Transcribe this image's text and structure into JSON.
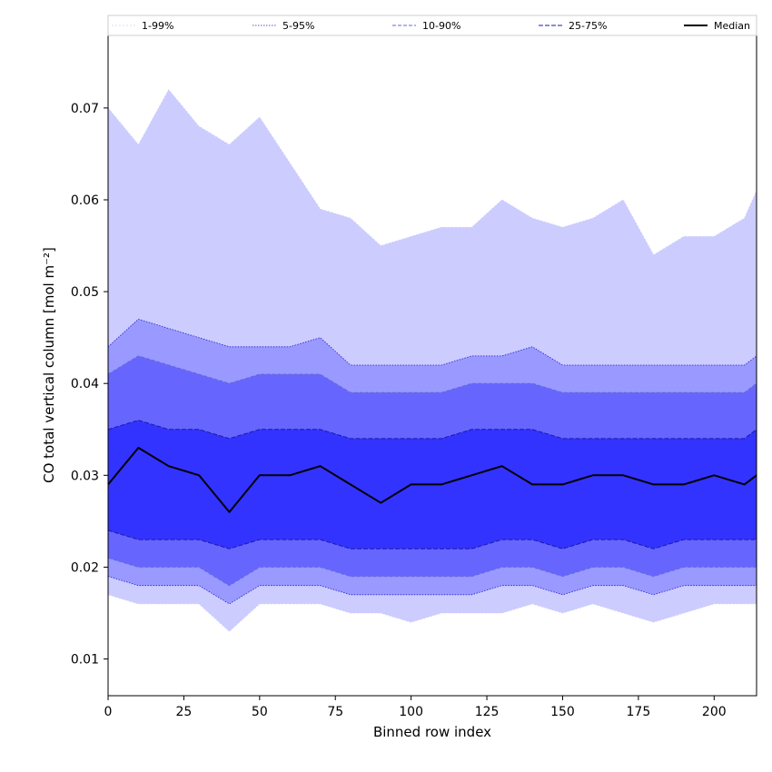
{
  "chart_data": {
    "type": "area",
    "xlabel": "Binned row index",
    "ylabel": "CO total vertical column [mol m⁻²]",
    "xlim": [
      0,
      214
    ],
    "ylim": [
      0.006,
      0.078
    ],
    "xticks": [
      0,
      25,
      50,
      75,
      100,
      125,
      150,
      175,
      200
    ],
    "yticks": [
      0.01,
      0.02,
      0.03,
      0.04,
      0.05,
      0.06,
      0.07
    ],
    "legend_position": "top",
    "legend": [
      "1-99%",
      "5-95%",
      "10-90%",
      "25-75%",
      "Median"
    ],
    "x": [
      0,
      10,
      20,
      30,
      40,
      50,
      60,
      70,
      80,
      90,
      100,
      110,
      120,
      130,
      140,
      150,
      160,
      170,
      180,
      190,
      200,
      210,
      214
    ],
    "bands": [
      {
        "name": "1-99%",
        "fill": "#ccccff",
        "upper": [
          0.07,
          0.066,
          0.072,
          0.068,
          0.066,
          0.069,
          0.064,
          0.059,
          0.058,
          0.055,
          0.056,
          0.057,
          0.057,
          0.06,
          0.058,
          0.057,
          0.058,
          0.06,
          0.054,
          0.056,
          0.056,
          0.058,
          0.061
        ],
        "lower": [
          0.017,
          0.016,
          0.016,
          0.016,
          0.013,
          0.016,
          0.016,
          0.016,
          0.015,
          0.015,
          0.014,
          0.015,
          0.015,
          0.015,
          0.016,
          0.015,
          0.016,
          0.015,
          0.014,
          0.015,
          0.016,
          0.016,
          0.016
        ]
      },
      {
        "name": "5-95%",
        "fill": "#9999ff",
        "upper": [
          0.044,
          0.047,
          0.046,
          0.045,
          0.044,
          0.044,
          0.044,
          0.045,
          0.042,
          0.042,
          0.042,
          0.042,
          0.043,
          0.043,
          0.044,
          0.042,
          0.042,
          0.042,
          0.042,
          0.042,
          0.042,
          0.042,
          0.043
        ],
        "lower": [
          0.019,
          0.018,
          0.018,
          0.018,
          0.016,
          0.018,
          0.018,
          0.018,
          0.017,
          0.017,
          0.017,
          0.017,
          0.017,
          0.018,
          0.018,
          0.017,
          0.018,
          0.018,
          0.017,
          0.018,
          0.018,
          0.018,
          0.018
        ]
      },
      {
        "name": "10-90%",
        "fill": "#6666ff",
        "upper": [
          0.041,
          0.043,
          0.042,
          0.041,
          0.04,
          0.041,
          0.041,
          0.041,
          0.039,
          0.039,
          0.039,
          0.039,
          0.04,
          0.04,
          0.04,
          0.039,
          0.039,
          0.039,
          0.039,
          0.039,
          0.039,
          0.039,
          0.04
        ],
        "lower": [
          0.021,
          0.02,
          0.02,
          0.02,
          0.018,
          0.02,
          0.02,
          0.02,
          0.019,
          0.019,
          0.019,
          0.019,
          0.019,
          0.02,
          0.02,
          0.019,
          0.02,
          0.02,
          0.019,
          0.02,
          0.02,
          0.02,
          0.02
        ]
      },
      {
        "name": "25-75%",
        "fill": "#3333ff",
        "upper": [
          0.035,
          0.036,
          0.035,
          0.035,
          0.034,
          0.035,
          0.035,
          0.035,
          0.034,
          0.034,
          0.034,
          0.034,
          0.035,
          0.035,
          0.035,
          0.034,
          0.034,
          0.034,
          0.034,
          0.034,
          0.034,
          0.034,
          0.035
        ],
        "lower": [
          0.024,
          0.023,
          0.023,
          0.023,
          0.022,
          0.023,
          0.023,
          0.023,
          0.022,
          0.022,
          0.022,
          0.022,
          0.022,
          0.023,
          0.023,
          0.022,
          0.023,
          0.023,
          0.022,
          0.023,
          0.023,
          0.023,
          0.023
        ]
      }
    ],
    "median": {
      "name": "Median",
      "color": "#000000",
      "values": [
        0.029,
        0.033,
        0.031,
        0.03,
        0.026,
        0.03,
        0.03,
        0.031,
        0.029,
        0.027,
        0.029,
        0.029,
        0.03,
        0.031,
        0.029,
        0.029,
        0.03,
        0.03,
        0.029,
        0.029,
        0.03,
        0.029,
        0.03
      ]
    }
  }
}
